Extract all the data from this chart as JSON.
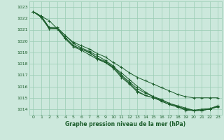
{
  "xlabel": "Graphe pression niveau de la mer (hPa)",
  "ylim": [
    1013.5,
    1023.5
  ],
  "xlim": [
    -0.5,
    23.5
  ],
  "yticks": [
    1014,
    1015,
    1016,
    1017,
    1018,
    1019,
    1020,
    1021,
    1022,
    1023
  ],
  "xticks": [
    0,
    1,
    2,
    3,
    4,
    5,
    6,
    7,
    8,
    9,
    10,
    11,
    12,
    13,
    14,
    15,
    16,
    17,
    18,
    19,
    20,
    21,
    22,
    23
  ],
  "background_color": "#cce8dc",
  "grid_color": "#99ccb3",
  "line_color": "#1a5c2a",
  "series": [
    [
      1022.6,
      1022.1,
      1021.1,
      1021.1,
      1020.2,
      1019.5,
      1019.2,
      1018.8,
      1018.4,
      1018.1,
      1017.7,
      1017.2,
      1016.6,
      1016.0,
      1015.5,
      1015.1,
      1014.7,
      1014.4,
      1014.2,
      1013.9,
      1013.9,
      1013.9,
      1014.0,
      1014.2
    ],
    [
      1022.6,
      1022.1,
      1021.1,
      1021.1,
      1020.3,
      1019.6,
      1019.3,
      1019.0,
      1018.5,
      1018.1,
      1017.6,
      1016.8,
      1016.2,
      1015.5,
      1015.2,
      1015.0,
      1014.7,
      1014.4,
      1014.2,
      1014.0,
      1013.9,
      1013.9,
      1014.0,
      1014.25
    ],
    [
      1022.6,
      1022.2,
      1021.2,
      1021.1,
      1020.3,
      1019.6,
      1019.3,
      1019.0,
      1018.5,
      1018.2,
      1017.7,
      1016.9,
      1016.3,
      1015.6,
      1015.2,
      1015.0,
      1014.8,
      1014.5,
      1014.25,
      1014.0,
      1013.85,
      1013.9,
      1014.0,
      1014.25
    ],
    [
      1022.6,
      1022.2,
      1021.2,
      1021.2,
      1020.5,
      1019.8,
      1019.4,
      1019.1,
      1018.7,
      1018.3,
      1017.8,
      1017.0,
      1016.4,
      1015.8,
      1015.4,
      1015.1,
      1014.85,
      1014.5,
      1014.3,
      1014.1,
      1013.9,
      1014.0,
      1014.05,
      1014.3
    ]
  ],
  "series_top": [
    1022.6,
    1022.2,
    1021.8,
    1021.1,
    1020.5,
    1019.9,
    1019.6,
    1019.3,
    1018.9,
    1018.6,
    1018.1,
    1017.7,
    1017.2,
    1016.8,
    1016.5,
    1016.2,
    1015.9,
    1015.6,
    1015.3,
    1015.1,
    1015.0,
    1015.0,
    1015.0,
    1015.0
  ]
}
